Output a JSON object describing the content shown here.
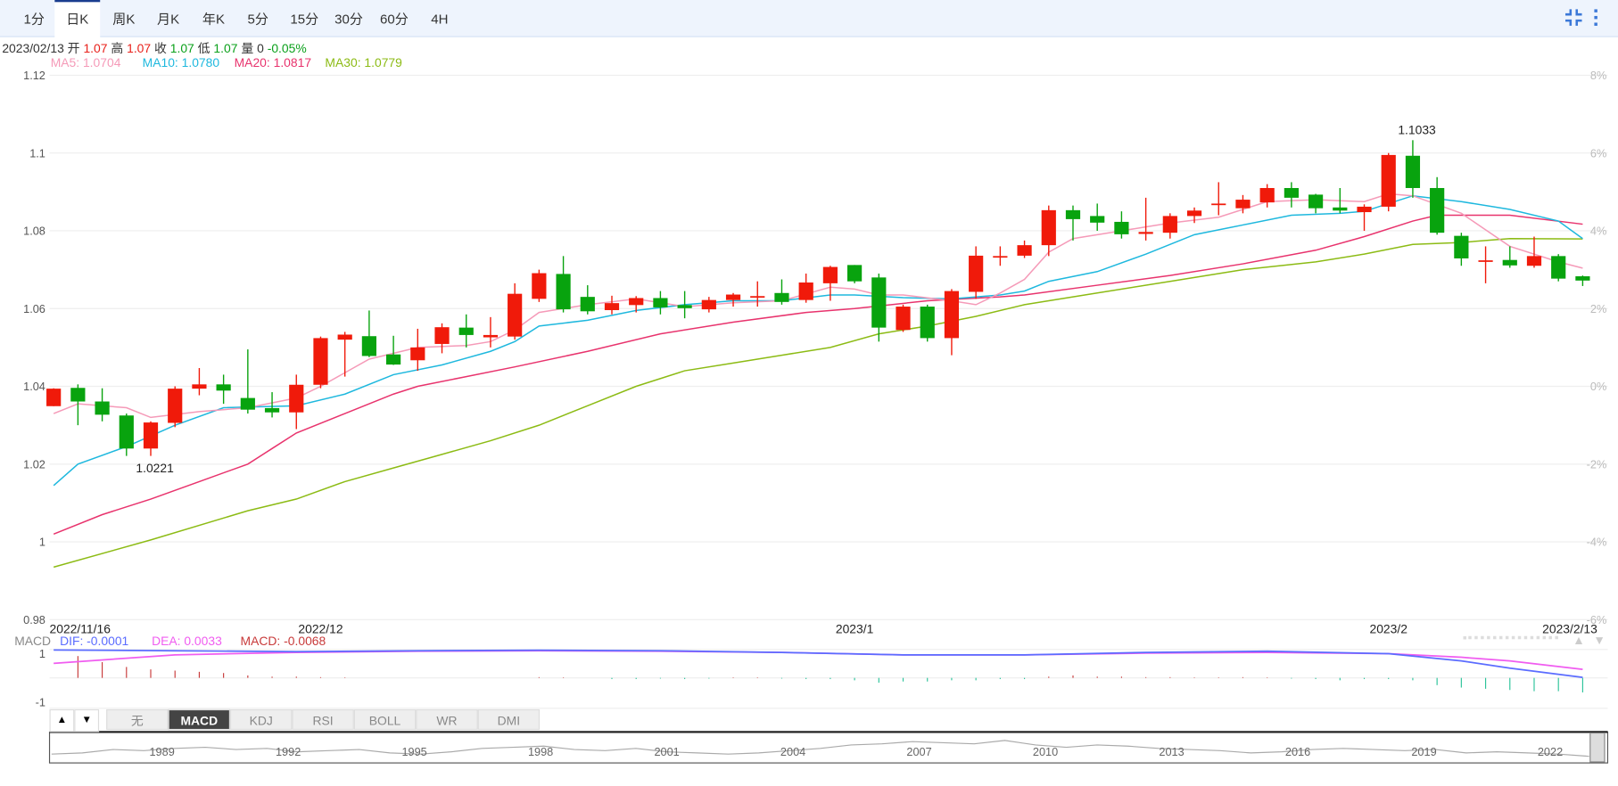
{
  "toolbar": {
    "periods": [
      "1分",
      "日K",
      "周K",
      "月K",
      "年K",
      "5分",
      "15分",
      "30分",
      "60分",
      "4H"
    ],
    "active": "日K",
    "icons": [
      "compress-icon",
      "more-vertical-icon"
    ]
  },
  "info": {
    "date": "2023/02/13",
    "open_label": "开",
    "open": "1.07",
    "high_label": "高",
    "high": "1.07",
    "close_label": "收",
    "close": "1.07",
    "low_label": "低",
    "low": "1.07",
    "vol_label": "量",
    "vol": "0",
    "change": "-0.05%"
  },
  "ma_legend": {
    "ma5": "MA5: 1.0704",
    "ma10": "MA10: 1.0780",
    "ma20": "MA20: 1.0817",
    "ma30": "MA30: 1.0779"
  },
  "colors": {
    "up": "#f01a0a",
    "down": "#08a30e",
    "ma5": "#f59ab8",
    "ma10": "#1eb8de",
    "ma20": "#e8336d",
    "ma30": "#8cbb14",
    "dif": "#5b6cff",
    "dea": "#f05cf0",
    "macd": "#c83a3a",
    "macd_neg": "#2cc39a"
  },
  "chart_data": {
    "type": "candlestick",
    "ylim": [
      0.98,
      1.12
    ],
    "yticks": [
      "1.12",
      "1.1",
      "1.08",
      "1.06",
      "1.04",
      "1.02",
      "1",
      "0.98"
    ],
    "yticks_right": [
      "8%",
      "6%",
      "4%",
      "2%",
      "0%",
      "-2%",
      "-4%",
      "-6%"
    ],
    "date_labels": [
      {
        "i": 0,
        "text": "2022/11/16"
      },
      {
        "i": 11,
        "text": "2022/12"
      },
      {
        "i": 33,
        "text": "2023/1"
      },
      {
        "i": 55,
        "text": "2023/2"
      },
      {
        "i": 63,
        "text": "2023/2/13"
      }
    ],
    "annotations": [
      {
        "i": 4,
        "text": "1.0221",
        "pos": "below"
      },
      {
        "i": 56,
        "text": "1.1033",
        "pos": "above"
      }
    ],
    "candles": [
      [
        1.0349,
        1.0395,
        1.0349,
        1.0394
      ],
      [
        1.0396,
        1.0405,
        1.03,
        1.0361
      ],
      [
        1.0361,
        1.0395,
        1.031,
        1.0327
      ],
      [
        1.0325,
        1.033,
        1.0221,
        1.024
      ],
      [
        1.024,
        1.031,
        1.0221,
        1.0307
      ],
      [
        1.0306,
        1.04,
        1.0295,
        1.0394
      ],
      [
        1.0394,
        1.0447,
        1.0377,
        1.0405
      ],
      [
        1.0405,
        1.043,
        1.0355,
        1.0389
      ],
      [
        1.037,
        1.0495,
        1.033,
        1.034
      ],
      [
        1.0344,
        1.0385,
        1.032,
        1.0333
      ],
      [
        1.0333,
        1.043,
        1.029,
        1.0404
      ],
      [
        1.0404,
        1.0528,
        1.0395,
        1.0524
      ],
      [
        1.052,
        1.054,
        1.0425,
        1.0533
      ],
      [
        1.0529,
        1.0595,
        1.0475,
        1.0478
      ],
      [
        1.0482,
        1.053,
        1.0455,
        1.0456
      ],
      [
        1.0467,
        1.0548,
        1.044,
        1.05
      ],
      [
        1.0509,
        1.0562,
        1.0485,
        1.0552
      ],
      [
        1.0551,
        1.0585,
        1.05,
        1.0532
      ],
      [
        1.0526,
        1.0578,
        1.05,
        1.0532
      ],
      [
        1.0528,
        1.0665,
        1.052,
        1.0638
      ],
      [
        1.0625,
        1.07,
        1.0617,
        1.0691
      ],
      [
        1.0689,
        1.0735,
        1.059,
        1.0598
      ],
      [
        1.063,
        1.066,
        1.0585,
        1.0593
      ],
      [
        1.0596,
        1.0633,
        1.0585,
        1.0614
      ],
      [
        1.0609,
        1.0632,
        1.059,
        1.0627
      ],
      [
        1.0627,
        1.0645,
        1.0585,
        1.0603
      ],
      [
        1.0609,
        1.0645,
        1.0575,
        1.0601
      ],
      [
        1.0598,
        1.063,
        1.059,
        1.0622
      ],
      [
        1.0622,
        1.064,
        1.0605,
        1.0636
      ],
      [
        1.063,
        1.067,
        1.0605,
        1.0632
      ],
      [
        1.064,
        1.0675,
        1.061,
        1.0617
      ],
      [
        1.0622,
        1.069,
        1.0615,
        1.0667
      ],
      [
        1.0665,
        1.071,
        1.062,
        1.0707
      ],
      [
        1.0712,
        1.0712,
        1.0665,
        1.067
      ],
      [
        1.068,
        1.069,
        1.0515,
        1.0551
      ],
      [
        1.0545,
        1.061,
        1.054,
        1.0605
      ],
      [
        1.0605,
        1.061,
        1.0515,
        1.0524
      ],
      [
        1.0524,
        1.065,
        1.048,
        1.0645
      ],
      [
        1.0643,
        1.076,
        1.0625,
        1.0736
      ],
      [
        1.0733,
        1.076,
        1.071,
        1.0735
      ],
      [
        1.0736,
        1.0775,
        1.073,
        1.0763
      ],
      [
        1.0763,
        1.0865,
        1.0735,
        1.0853
      ],
      [
        1.0853,
        1.0865,
        1.0775,
        1.083
      ],
      [
        1.0838,
        1.087,
        1.08,
        1.0821
      ],
      [
        1.0823,
        1.085,
        1.078,
        1.0791
      ],
      [
        1.0792,
        1.0885,
        1.0775,
        1.0797
      ],
      [
        1.0795,
        1.0845,
        1.078,
        1.0838
      ],
      [
        1.0838,
        1.086,
        1.082,
        1.0852
      ],
      [
        1.0866,
        1.0925,
        1.084,
        1.087
      ],
      [
        1.0858,
        1.0892,
        1.0845,
        1.088
      ],
      [
        1.0873,
        1.092,
        1.086,
        1.091
      ],
      [
        1.091,
        1.0925,
        1.086,
        1.0885
      ],
      [
        1.0893,
        1.0895,
        1.0845,
        1.0858
      ],
      [
        1.086,
        1.091,
        1.0845,
        1.0852
      ],
      [
        1.0848,
        1.0868,
        1.08,
        1.0862
      ],
      [
        1.0862,
        1.1,
        1.085,
        1.0995
      ],
      [
        1.0993,
        1.1033,
        1.0885,
        1.091
      ],
      [
        1.091,
        1.0938,
        1.079,
        1.0795
      ],
      [
        1.0787,
        1.0795,
        1.071,
        1.0729
      ],
      [
        1.0722,
        1.076,
        1.0665,
        1.0724
      ],
      [
        1.0725,
        1.076,
        1.0705,
        1.0711
      ],
      [
        1.071,
        1.0785,
        1.0705,
        1.0735
      ],
      [
        1.0735,
        1.074,
        1.067,
        1.0677
      ],
      [
        1.0683,
        1.0685,
        1.0658,
        1.0672
      ]
    ],
    "candle_fields": [
      "open",
      "high",
      "low",
      "close"
    ],
    "ma5": [
      [
        0,
        1.033
      ],
      [
        1,
        1.0355
      ],
      [
        3,
        1.0345
      ],
      [
        4,
        1.032
      ],
      [
        6,
        1.0335
      ],
      [
        8,
        1.0345
      ],
      [
        10,
        1.037
      ],
      [
        11,
        1.04
      ],
      [
        13,
        1.047
      ],
      [
        15,
        1.05
      ],
      [
        17,
        1.0505
      ],
      [
        18,
        1.0515
      ],
      [
        19,
        1.0545
      ],
      [
        20,
        1.059
      ],
      [
        22,
        1.061
      ],
      [
        24,
        1.0625
      ],
      [
        26,
        1.0605
      ],
      [
        28,
        1.0615
      ],
      [
        30,
        1.062
      ],
      [
        32,
        1.0655
      ],
      [
        33,
        1.065
      ],
      [
        34,
        1.0635
      ],
      [
        35,
        1.0635
      ],
      [
        37,
        1.062
      ],
      [
        38,
        1.061
      ],
      [
        39,
        1.064
      ],
      [
        40,
        1.0675
      ],
      [
        41,
        1.0745
      ],
      [
        42,
        1.078
      ],
      [
        44,
        1.08
      ],
      [
        46,
        1.082
      ],
      [
        48,
        1.0835
      ],
      [
        50,
        1.0875
      ],
      [
        52,
        1.088
      ],
      [
        54,
        1.0875
      ],
      [
        55,
        1.0895
      ],
      [
        56,
        1.089
      ],
      [
        58,
        1.0845
      ],
      [
        60,
        1.076
      ],
      [
        62,
        1.072
      ],
      [
        63,
        1.0704
      ]
    ],
    "ma10": [
      [
        0,
        1.0145
      ],
      [
        1,
        1.02
      ],
      [
        3,
        1.0245
      ],
      [
        5,
        1.03
      ],
      [
        7,
        1.0345
      ],
      [
        10,
        1.035
      ],
      [
        12,
        1.038
      ],
      [
        14,
        1.043
      ],
      [
        16,
        1.0455
      ],
      [
        18,
        1.049
      ],
      [
        19,
        1.0515
      ],
      [
        20,
        1.0555
      ],
      [
        22,
        1.057
      ],
      [
        24,
        1.0595
      ],
      [
        26,
        1.061
      ],
      [
        28,
        1.062
      ],
      [
        30,
        1.062
      ],
      [
        32,
        1.0635
      ],
      [
        33,
        1.0635
      ],
      [
        35,
        1.0628
      ],
      [
        37,
        1.0625
      ],
      [
        39,
        1.0635
      ],
      [
        40,
        1.0645
      ],
      [
        41,
        1.067
      ],
      [
        43,
        1.0695
      ],
      [
        45,
        1.074
      ],
      [
        47,
        1.079
      ],
      [
        49,
        1.0815
      ],
      [
        51,
        1.084
      ],
      [
        53,
        1.0845
      ],
      [
        54,
        1.085
      ],
      [
        56,
        1.089
      ],
      [
        58,
        1.0875
      ],
      [
        60,
        1.0855
      ],
      [
        62,
        1.0825
      ],
      [
        63,
        1.078
      ]
    ],
    "ma20": [
      [
        0,
        1.002
      ],
      [
        2,
        1.007
      ],
      [
        4,
        1.011
      ],
      [
        6,
        1.0155
      ],
      [
        8,
        1.02
      ],
      [
        9,
        1.024
      ],
      [
        10,
        1.028
      ],
      [
        12,
        1.033
      ],
      [
        14,
        1.038
      ],
      [
        15,
        1.04
      ],
      [
        17,
        1.0425
      ],
      [
        19,
        1.045
      ],
      [
        22,
        1.049
      ],
      [
        25,
        1.0535
      ],
      [
        28,
        1.0565
      ],
      [
        31,
        1.059
      ],
      [
        33,
        1.06
      ],
      [
        36,
        1.062
      ],
      [
        39,
        1.063
      ],
      [
        40,
        1.0635
      ],
      [
        43,
        1.066
      ],
      [
        46,
        1.0685
      ],
      [
        49,
        1.0715
      ],
      [
        52,
        1.075
      ],
      [
        54,
        1.0785
      ],
      [
        56,
        1.0825
      ],
      [
        57,
        1.084
      ],
      [
        60,
        1.084
      ],
      [
        63,
        1.0817
      ]
    ],
    "ma30": [
      [
        0,
        0.9935
      ],
      [
        4,
        1.0005
      ],
      [
        8,
        1.008
      ],
      [
        10,
        1.011
      ],
      [
        12,
        1.0155
      ],
      [
        14,
        1.019
      ],
      [
        16,
        1.0225
      ],
      [
        18,
        1.026
      ],
      [
        20,
        1.03
      ],
      [
        22,
        1.035
      ],
      [
        24,
        1.04
      ],
      [
        26,
        1.044
      ],
      [
        28,
        1.046
      ],
      [
        30,
        1.048
      ],
      [
        32,
        1.05
      ],
      [
        34,
        1.0535
      ],
      [
        36,
        1.0555
      ],
      [
        38,
        1.058
      ],
      [
        40,
        1.061
      ],
      [
        43,
        1.064
      ],
      [
        46,
        1.067
      ],
      [
        49,
        1.07
      ],
      [
        52,
        1.072
      ],
      [
        54,
        1.074
      ],
      [
        56,
        1.0765
      ],
      [
        58,
        1.077
      ],
      [
        60,
        1.078
      ],
      [
        63,
        1.0779
      ]
    ]
  },
  "macd": {
    "label": "MACD",
    "dif": "DIF: -0.0001",
    "dea": "DEA: 0.0033",
    "macd": "MACD: -0.0068",
    "yticks": [
      "1",
      "-1"
    ],
    "dif_series": [
      [
        0,
        1.15
      ],
      [
        5,
        1.12
      ],
      [
        10,
        1.08
      ],
      [
        15,
        1.12
      ],
      [
        20,
        1.14
      ],
      [
        25,
        1.12
      ],
      [
        30,
        1.05
      ],
      [
        35,
        0.95
      ],
      [
        40,
        0.95
      ],
      [
        45,
        1.05
      ],
      [
        50,
        1.1
      ],
      [
        55,
        1.0
      ],
      [
        58,
        0.7
      ],
      [
        60,
        0.4
      ],
      [
        63,
        0.02
      ]
    ],
    "dea_series": [
      [
        0,
        0.6
      ],
      [
        5,
        0.95
      ],
      [
        10,
        1.05
      ],
      [
        15,
        1.1
      ],
      [
        20,
        1.12
      ],
      [
        25,
        1.1
      ],
      [
        30,
        1.05
      ],
      [
        35,
        0.95
      ],
      [
        40,
        0.95
      ],
      [
        45,
        1.02
      ],
      [
        50,
        1.05
      ],
      [
        55,
        1.0
      ],
      [
        58,
        0.85
      ],
      [
        60,
        0.7
      ],
      [
        63,
        0.35
      ]
    ],
    "histogram": [
      0,
      0.9,
      0.65,
      0.45,
      0.35,
      0.3,
      0.25,
      0.2,
      0.1,
      0.05,
      0.05,
      0.03,
      0.02,
      0,
      0,
      0,
      0,
      0,
      0,
      0,
      0.03,
      0.02,
      0,
      -0.05,
      -0.05,
      -0.03,
      -0.05,
      -0.03,
      0.02,
      0.02,
      -0.03,
      -0.05,
      -0.05,
      -0.1,
      -0.2,
      -0.15,
      -0.15,
      -0.1,
      -0.1,
      -0.05,
      -0.05,
      0.05,
      0.1,
      0.05,
      0.05,
      0.03,
      0.03,
      0.02,
      0.02,
      0.03,
      0.02,
      -0.03,
      -0.05,
      -0.1,
      -0.05,
      -0.05,
      -0.1,
      -0.3,
      -0.4,
      -0.45,
      -0.5,
      -0.55,
      -0.55,
      -0.6
    ]
  },
  "indicator_tabs": {
    "up": "▲",
    "down": "▼",
    "tabs": [
      "无",
      "MACD",
      "KDJ",
      "RSI",
      "BOLL",
      "WR",
      "DMI"
    ],
    "active": "MACD",
    "scroll_up": "▲",
    "scroll_down": "▼"
  },
  "navigator": {
    "years": [
      "1989",
      "1992",
      "1995",
      "1998",
      "2001",
      "2004",
      "2007",
      "2010",
      "2013",
      "2016",
      "2019",
      "2022"
    ],
    "series": [
      0.3,
      0.35,
      0.5,
      0.45,
      0.55,
      0.6,
      0.5,
      0.55,
      0.4,
      0.45,
      0.5,
      0.35,
      0.3,
      0.4,
      0.55,
      0.6,
      0.65,
      0.5,
      0.45,
      0.55,
      0.4,
      0.35,
      0.3,
      0.35,
      0.45,
      0.55,
      0.7,
      0.75,
      0.85,
      0.8,
      0.75,
      0.9,
      0.7,
      0.6,
      0.7,
      0.65,
      0.55,
      0.5,
      0.45,
      0.35,
      0.4,
      0.5,
      0.55,
      0.5,
      0.45,
      0.5,
      0.35,
      0.4,
      0.35,
      0.3,
      0.2
    ]
  }
}
